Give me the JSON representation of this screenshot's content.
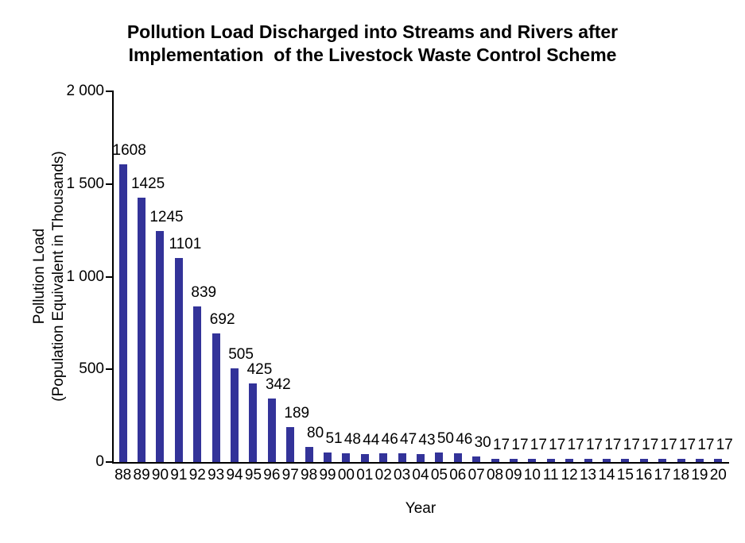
{
  "chart_data": {
    "type": "bar",
    "title_line1": "Pollution Load Discharged into Streams and Rivers after",
    "title_line2": "Implementation  of the Livestock Waste Control Scheme",
    "ylabel_line1": "Pollution Load",
    "ylabel_line2": "(Population Equivalent in Thousands)",
    "xlabel": "Year",
    "categories": [
      "88",
      "89",
      "90",
      "91",
      "92",
      "93",
      "94",
      "95",
      "96",
      "97",
      "98",
      "99",
      "00",
      "01",
      "02",
      "03",
      "04",
      "05",
      "06",
      "07",
      "08",
      "09",
      "10",
      "11",
      "12",
      "13",
      "14",
      "15",
      "16",
      "17",
      "18",
      "19",
      "20"
    ],
    "values": [
      1608,
      1425,
      1245,
      1101,
      839,
      692,
      505,
      425,
      342,
      189,
      80,
      51,
      48,
      44,
      46,
      47,
      43,
      50,
      46,
      30,
      17,
      17,
      17,
      17,
      17,
      17,
      17,
      17,
      17,
      17,
      17,
      17,
      17
    ],
    "ylim": [
      0,
      2000
    ],
    "yticks": [
      {
        "value": 0,
        "label": "0"
      },
      {
        "value": 500,
        "label": "500"
      },
      {
        "value": 1000,
        "label": "1 000"
      },
      {
        "value": 1500,
        "label": "1 500"
      },
      {
        "value": 2000,
        "label": "2 000"
      }
    ],
    "bar_color": "#333399",
    "axis_color": "#000000",
    "background_color": "#ffffff",
    "grid": false,
    "legend": "none",
    "data_labels": "above bars"
  }
}
